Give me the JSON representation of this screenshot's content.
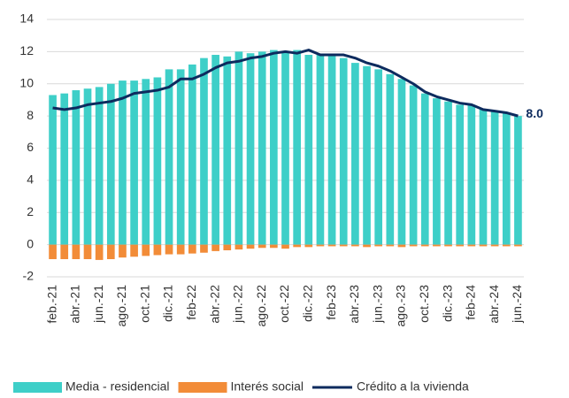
{
  "chart_data": {
    "type": "bar",
    "categories": [
      "feb.-21",
      null,
      "abr.-21",
      null,
      "jun.-21",
      null,
      "ago.-21",
      null,
      "oct.-21",
      null,
      "dic.-21",
      null,
      "feb-22",
      null,
      "abr.-22",
      null,
      "jun.-22",
      null,
      "ago.-22",
      null,
      "oct.-22",
      null,
      "dic.-22",
      null,
      "feb-23",
      null,
      "abr.-23",
      null,
      "jun.-23",
      null,
      "ago.-23",
      null,
      "oct.-23",
      null,
      "dic.-23",
      null,
      "feb-24",
      null,
      "abr.-24",
      null,
      "jun.-24"
    ],
    "series": [
      {
        "name": "Media - residencial",
        "type": "bar",
        "color": "#3ecfc8",
        "values": [
          9.3,
          9.4,
          9.6,
          9.7,
          9.8,
          10.0,
          10.2,
          10.2,
          10.3,
          10.4,
          10.9,
          10.9,
          11.2,
          11.6,
          11.8,
          11.7,
          12.0,
          11.9,
          12.0,
          12.1,
          12.0,
          12.1,
          11.8,
          11.8,
          11.8,
          11.6,
          11.3,
          11.1,
          10.9,
          10.6,
          10.3,
          9.9,
          9.4,
          9.1,
          8.9,
          8.7,
          8.7,
          8.4,
          8.3,
          8.2,
          8.0
        ]
      },
      {
        "name": "Interés social",
        "type": "bar",
        "color": "#f28c38",
        "values": [
          -0.9,
          -0.9,
          -0.9,
          -0.9,
          -0.95,
          -0.9,
          -0.8,
          -0.75,
          -0.7,
          -0.65,
          -0.6,
          -0.6,
          -0.55,
          -0.5,
          -0.4,
          -0.35,
          -0.3,
          -0.25,
          -0.2,
          -0.2,
          -0.25,
          -0.15,
          -0.15,
          -0.1,
          -0.1,
          -0.1,
          -0.1,
          -0.15,
          -0.1,
          -0.1,
          -0.15,
          -0.1,
          -0.1,
          -0.1,
          -0.1,
          -0.1,
          -0.1,
          -0.1,
          -0.1,
          -0.1,
          -0.1
        ]
      },
      {
        "name": "Crédito a la vivienda",
        "type": "line",
        "color": "#0d2b5e",
        "values": [
          8.5,
          8.4,
          8.5,
          8.7,
          8.8,
          8.9,
          9.1,
          9.4,
          9.5,
          9.6,
          9.8,
          10.3,
          10.3,
          10.6,
          11.0,
          11.3,
          11.4,
          11.6,
          11.7,
          11.9,
          12.0,
          11.9,
          12.1,
          11.8,
          11.8,
          11.8,
          11.6,
          11.3,
          11.1,
          10.8,
          10.4,
          10.0,
          9.5,
          9.2,
          9.0,
          8.8,
          8.7,
          8.4,
          8.3,
          8.2,
          8.0
        ],
        "value_labels": [
          null,
          null,
          null,
          null,
          null,
          null,
          null,
          null,
          null,
          null,
          null,
          null,
          null,
          null,
          null,
          null,
          null,
          null,
          null,
          null,
          null,
          null,
          null,
          null,
          null,
          null,
          null,
          null,
          null,
          null,
          null,
          null,
          null,
          null,
          null,
          null,
          null,
          null,
          null,
          null,
          "8.0"
        ]
      }
    ],
    "ylim": [
      -2,
      14
    ],
    "yticks": [
      -2,
      0,
      2,
      4,
      6,
      8,
      10,
      12,
      14
    ],
    "grid": true,
    "legend": "bottom"
  }
}
